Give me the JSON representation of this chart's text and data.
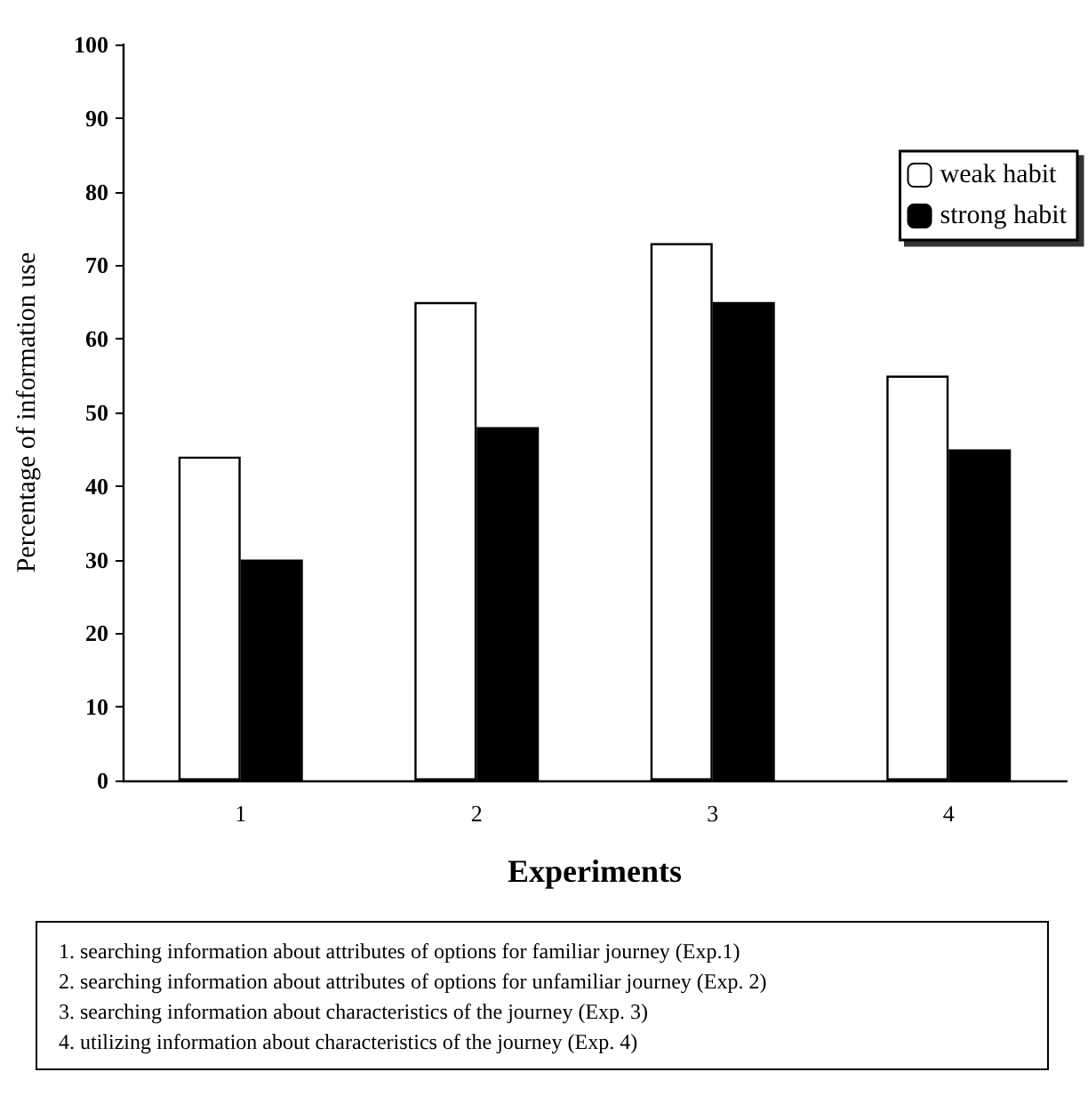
{
  "chart_data": {
    "type": "bar",
    "xlabel": "Experiments",
    "ylabel": "Percentage of information use",
    "categories": [
      "1",
      "2",
      "3",
      "4"
    ],
    "series": [
      {
        "name": "weak habit",
        "color": "#ffffff",
        "values": [
          44,
          65,
          73,
          55
        ]
      },
      {
        "name": "strong habit",
        "color": "#000000",
        "values": [
          30,
          48,
          65,
          45
        ]
      }
    ],
    "ylim": [
      0,
      100
    ],
    "yticks": [
      0,
      10,
      20,
      30,
      40,
      50,
      60,
      70,
      80,
      90,
      100
    ],
    "grid": false,
    "legend": "top right",
    "annotations": [
      "1. searching information about attributes of options for familiar journey (Exp.1)",
      "2. searching information about attributes of options for unfamiliar journey (Exp. 2)",
      "3. searching information about characteristics of the journey (Exp. 3)",
      "4. utilizing information about characteristics of the journey (Exp. 4)"
    ]
  }
}
